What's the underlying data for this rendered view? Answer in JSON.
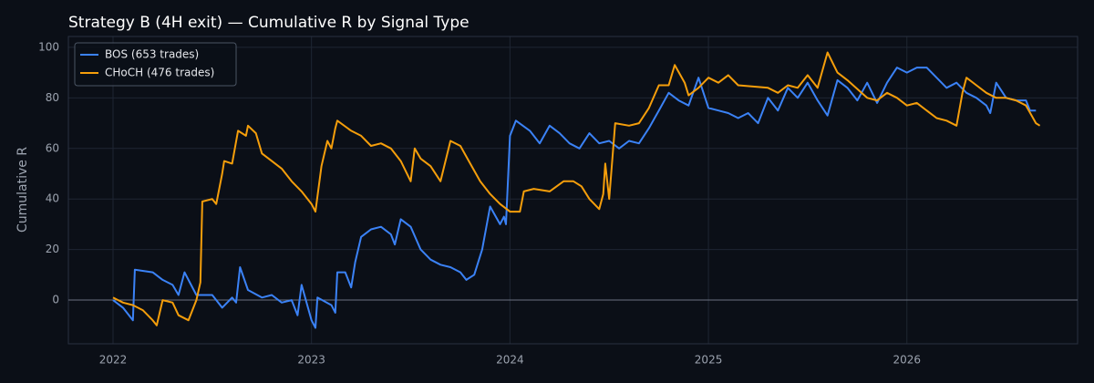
{
  "chart_data": {
    "type": "line",
    "title": "Strategy B (4H exit) — Cumulative R by Signal Type",
    "ylabel": "Cumulative R",
    "xlim": [
      2021.775,
      2026.86
    ],
    "ylim": [
      -17.3,
      104.3
    ],
    "xticks": [
      2022,
      2023,
      2024,
      2025,
      2026
    ],
    "yticks": [
      0,
      20,
      40,
      60,
      80,
      100
    ],
    "grid": true,
    "reference_line": 0,
    "legend": "upper left",
    "series": [
      {
        "name": "BOS (653 trades)",
        "color": "#3b82f6",
        "x": [
          2022.0,
          2022.05,
          2022.1,
          2022.11,
          2022.2,
          2022.25,
          2022.3,
          2022.33,
          2022.36,
          2022.42,
          2022.5,
          2022.55,
          2022.6,
          2022.62,
          2022.64,
          2022.68,
          2022.75,
          2022.8,
          2022.85,
          2022.9,
          2022.93,
          2022.95,
          2023.0,
          2023.02,
          2023.03,
          2023.1,
          2023.12,
          2023.13,
          2023.17,
          2023.2,
          2023.22,
          2023.25,
          2023.3,
          2023.35,
          2023.4,
          2023.42,
          2023.45,
          2023.5,
          2023.55,
          2023.6,
          2023.65,
          2023.7,
          2023.75,
          2023.78,
          2023.82,
          2023.86,
          2023.9,
          2023.95,
          2023.97,
          2023.98,
          2024.0,
          2024.03,
          2024.1,
          2024.15,
          2024.2,
          2024.25,
          2024.3,
          2024.35,
          2024.4,
          2024.45,
          2024.5,
          2024.55,
          2024.6,
          2024.65,
          2024.7,
          2024.75,
          2024.8,
          2024.85,
          2024.9,
          2024.95,
          2025.0,
          2025.05,
          2025.1,
          2025.15,
          2025.2,
          2025.25,
          2025.3,
          2025.35,
          2025.4,
          2025.45,
          2025.5,
          2025.55,
          2025.6,
          2025.65,
          2025.7,
          2025.75,
          2025.8,
          2025.85,
          2025.9,
          2025.95,
          2026.0,
          2026.05,
          2026.1,
          2026.15,
          2026.2,
          2026.25,
          2026.3,
          2026.35,
          2026.4,
          2026.42,
          2026.45,
          2026.5,
          2026.55,
          2026.6,
          2026.62,
          2026.65
        ],
        "values": [
          0,
          -3,
          -8,
          12,
          11,
          8,
          6,
          2,
          11,
          2,
          2,
          -3,
          1,
          -1,
          13,
          4,
          1,
          2,
          -1,
          0,
          -6,
          6,
          -8,
          -11,
          1,
          -2,
          -5,
          11,
          11,
          5,
          15,
          25,
          28,
          29,
          26,
          22,
          32,
          29,
          20,
          16,
          14,
          13,
          11,
          8,
          10,
          20,
          37,
          30,
          33,
          30,
          65,
          71,
          67,
          62,
          69,
          66,
          62,
          60,
          66,
          62,
          63,
          60,
          63,
          62,
          68,
          75,
          82,
          79,
          77,
          88,
          76,
          75,
          74,
          72,
          74,
          70,
          80,
          75,
          84,
          80,
          86,
          79,
          73,
          87,
          84,
          79,
          86,
          78,
          86,
          92,
          90,
          92,
          92,
          88,
          84,
          86,
          82,
          80,
          77,
          74,
          86,
          80,
          79,
          79,
          75,
          75
        ]
      },
      {
        "name": "CHoCH (476 trades)",
        "color": "#f59e0b",
        "x": [
          2022.0,
          2022.05,
          2022.1,
          2022.15,
          2022.2,
          2022.22,
          2022.25,
          2022.3,
          2022.33,
          2022.38,
          2022.42,
          2022.44,
          2022.45,
          2022.5,
          2022.52,
          2022.55,
          2022.56,
          2022.6,
          2022.63,
          2022.67,
          2022.68,
          2022.72,
          2022.75,
          2022.8,
          2022.85,
          2022.9,
          2022.95,
          2023.0,
          2023.02,
          2023.05,
          2023.08,
          2023.1,
          2023.12,
          2023.13,
          2023.2,
          2023.25,
          2023.3,
          2023.35,
          2023.4,
          2023.45,
          2023.5,
          2023.52,
          2023.55,
          2023.6,
          2023.65,
          2023.7,
          2023.75,
          2023.8,
          2023.85,
          2023.9,
          2023.95,
          2024.0,
          2024.05,
          2024.07,
          2024.12,
          2024.2,
          2024.27,
          2024.32,
          2024.36,
          2024.4,
          2024.45,
          2024.47,
          2024.48,
          2024.5,
          2024.53,
          2024.6,
          2024.65,
          2024.7,
          2024.75,
          2024.8,
          2024.83,
          2024.88,
          2024.9,
          2024.95,
          2025.0,
          2025.05,
          2025.1,
          2025.15,
          2025.3,
          2025.35,
          2025.4,
          2025.45,
          2025.5,
          2025.55,
          2025.6,
          2025.65,
          2025.7,
          2025.8,
          2025.85,
          2025.9,
          2025.95,
          2026.0,
          2026.05,
          2026.1,
          2026.15,
          2026.2,
          2026.25,
          2026.28,
          2026.3,
          2026.35,
          2026.4,
          2026.45,
          2026.5,
          2026.55,
          2026.6,
          2026.65,
          2026.67
        ],
        "values": [
          1,
          -1,
          -2,
          -4,
          -8,
          -10,
          0,
          -1,
          -6,
          -8,
          0,
          7,
          39,
          40,
          38,
          50,
          55,
          54,
          67,
          65,
          69,
          66,
          58,
          55,
          52,
          47,
          43,
          38,
          35,
          53,
          63,
          60,
          68,
          71,
          67,
          65,
          61,
          62,
          60,
          55,
          47,
          60,
          56,
          53,
          47,
          63,
          61,
          54,
          47,
          42,
          38,
          35,
          35,
          43,
          44,
          43,
          47,
          47,
          45,
          40,
          36,
          42,
          54,
          40,
          70,
          69,
          70,
          76,
          85,
          85,
          93,
          86,
          81,
          84,
          88,
          86,
          89,
          85,
          84,
          82,
          85,
          84,
          89,
          84,
          98,
          90,
          87,
          80,
          79,
          82,
          80,
          77,
          78,
          75,
          72,
          71,
          69,
          82,
          88,
          85,
          82,
          80,
          80,
          79,
          77,
          70,
          69
        ]
      }
    ]
  }
}
